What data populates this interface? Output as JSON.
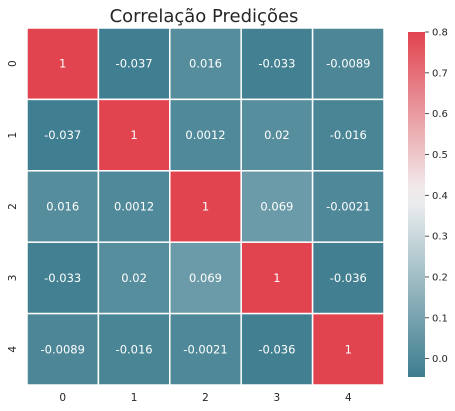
{
  "chart_data": {
    "type": "heatmap",
    "title": "Correlação Predições",
    "x_tick_labels": [
      "0",
      "1",
      "2",
      "3",
      "4"
    ],
    "y_tick_labels": [
      "0",
      "1",
      "2",
      "3",
      "4"
    ],
    "values": [
      [
        1,
        -0.037,
        0.016,
        -0.033,
        -0.0089
      ],
      [
        -0.037,
        1,
        0.0012,
        0.02,
        -0.016
      ],
      [
        0.016,
        0.0012,
        1,
        0.069,
        -0.0021
      ],
      [
        -0.033,
        0.02,
        0.069,
        1,
        -0.036
      ],
      [
        -0.0089,
        -0.016,
        -0.0021,
        -0.036,
        1
      ]
    ],
    "cell_labels": [
      [
        "1",
        "-0.037",
        "0.016",
        "-0.033",
        "-0.0089"
      ],
      [
        "-0.037",
        "1",
        "0.0012",
        "0.02",
        "-0.016"
      ],
      [
        "0.016",
        "0.0012",
        "1",
        "0.069",
        "-0.0021"
      ],
      [
        "-0.033",
        "0.02",
        "0.069",
        "1",
        "-0.036"
      ],
      [
        "-0.0089",
        "-0.016",
        "-0.0021",
        "-0.036",
        "1"
      ]
    ],
    "colorbar": {
      "vmin": -0.045,
      "vmax": 0.8,
      "ticks": [
        0.8,
        0.7,
        0.6,
        0.5,
        0.4,
        0.3,
        0.2,
        0.1,
        0.0
      ],
      "tick_labels": [
        "0.8",
        "0.7",
        "0.6",
        "0.5",
        "0.4",
        "0.3",
        "0.2",
        "0.1",
        "0.0"
      ],
      "colormap": "diverging teal-white-red",
      "colors": {
        "low": "#3d7d8f",
        "mid": "#f2f2f2",
        "high": "#e1434f"
      },
      "center": 0.4
    },
    "cell_border_color": "#ffffff"
  }
}
